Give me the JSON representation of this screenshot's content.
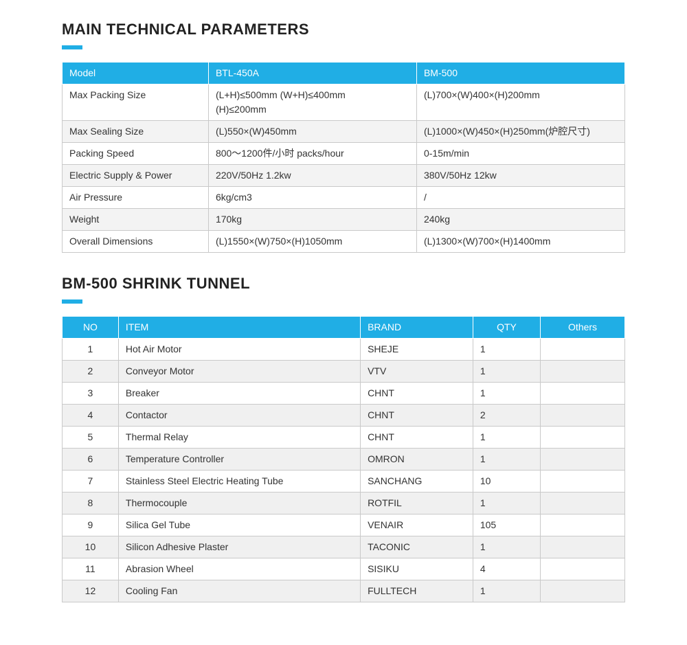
{
  "section1": {
    "title": "MAIN TECHNICAL PARAMETERS",
    "headers": [
      "Model",
      "BTL-450A",
      "BM-500"
    ],
    "rows": [
      {
        "label": "Max Packing Size",
        "col2": "(L+H)≤500mm  (W+H)≤400mm\n(H)≤200mm",
        "col3": "(L)700×(W)400×(H)200mm"
      },
      {
        "label": "Max Sealing Size",
        "col2": "(L)550×(W)450mm",
        "col3": "(L)1000×(W)450×(H)250mm(炉腔尺寸)"
      },
      {
        "label": "Packing Speed",
        "col2": "800～1200件/小时 packs/hour",
        "col3": "0-15m/min"
      },
      {
        "label": "Electric Supply & Power",
        "col2": "220V/50Hz  1.2kw",
        "col3": "380V/50Hz  12kw"
      },
      {
        "label": "Air Pressure",
        "col2": "6kg/cm3",
        "col3": "/"
      },
      {
        "label": "Weight",
        "col2": "170kg",
        "col3": "240kg"
      },
      {
        "label": "Overall Dimensions",
        "col2": "(L)1550×(W)750×(H)1050mm",
        "col3": "(L)1300×(W)700×(H)1400mm"
      }
    ]
  },
  "section2": {
    "title": "BM-500 SHRINK TUNNEL",
    "headers": [
      "NO",
      "ITEM",
      "BRAND",
      "QTY",
      "Others"
    ],
    "rows": [
      {
        "no": "1",
        "item": "Hot Air Motor",
        "brand": "SHEJE",
        "qty": "1",
        "others": ""
      },
      {
        "no": "2",
        "item": "Conveyor Motor",
        "brand": "VTV",
        "qty": "1",
        "others": ""
      },
      {
        "no": "3",
        "item": "Breaker",
        "brand": "CHNT",
        "qty": "1",
        "others": ""
      },
      {
        "no": "4",
        "item": "Contactor",
        "brand": "CHNT",
        "qty": "2",
        "others": ""
      },
      {
        "no": "5",
        "item": "Thermal Relay",
        "brand": "CHNT",
        "qty": "1",
        "others": ""
      },
      {
        "no": "6",
        "item": "Temperature Controller",
        "brand": "OMRON",
        "qty": "1",
        "others": ""
      },
      {
        "no": "7",
        "item": "Stainless Steel Electric Heating Tube",
        "brand": "SANCHANG",
        "qty": "10",
        "others": ""
      },
      {
        "no": "8",
        "item": "Thermocouple",
        "brand": "ROTFIL",
        "qty": "1",
        "others": ""
      },
      {
        "no": "9",
        "item": "Silica Gel Tube",
        "brand": "VENAIR",
        "qty": "105",
        "others": ""
      },
      {
        "no": "10",
        "item": "Silicon Adhesive Plaster",
        "brand": "TACONIC",
        "qty": "1",
        "others": ""
      },
      {
        "no": "11",
        "item": "Abrasion Wheel",
        "brand": "SISIKU",
        "qty": "4",
        "others": ""
      },
      {
        "no": "12",
        "item": "Cooling Fan",
        "brand": "FULLTECH",
        "qty": "1",
        "others": ""
      }
    ]
  },
  "style": {
    "accent_color": "#20aee5",
    "header_text_color": "#ffffff",
    "border_color": "#c9c9c9",
    "row_alt_bg": "#f0f0f0",
    "row_bg": "#ffffff",
    "title_fontsize": 22,
    "body_fontsize": 14
  }
}
